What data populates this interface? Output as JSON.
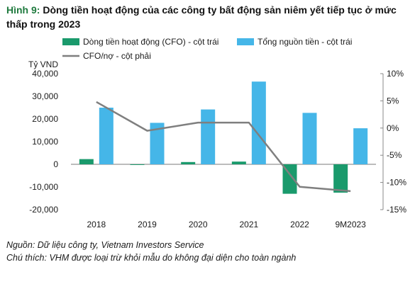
{
  "figure": {
    "label": "Hình 9:",
    "title": "Dòng tiền hoạt động của các công ty bất động sản niêm yết tiếp tục ở mức thấp trong 2023"
  },
  "chart_data": {
    "type": "bar",
    "categories": [
      "2018",
      "2019",
      "2020",
      "2021",
      "2022",
      "9M2023"
    ],
    "series": [
      {
        "name": "Dòng tiền hoạt động (CFO) - cột trái",
        "kind": "bar",
        "axis": "left",
        "color": "#1a9a6c",
        "values": [
          2300,
          -300,
          1000,
          1200,
          -13000,
          -12500
        ]
      },
      {
        "name": "Tổng nguồn tiền - cột trái",
        "kind": "bar",
        "axis": "left",
        "color": "#45b6e8",
        "values": [
          25000,
          18300,
          24200,
          36500,
          22700,
          15900
        ]
      },
      {
        "name": "CFO/nợ - cột phải",
        "kind": "line",
        "axis": "right",
        "color": "#7f7f7f",
        "values": [
          4.8,
          -0.5,
          1.0,
          1.0,
          -10.8,
          -11.6
        ]
      }
    ],
    "left_axis": {
      "unit_label": "Tỷ VND",
      "ylim": [
        -20000,
        40000
      ],
      "ticks": [
        40000,
        30000,
        20000,
        10000,
        0,
        -10000,
        -20000
      ],
      "tick_labels": [
        "40,000",
        "30,000",
        "20,000",
        "10,000",
        "0",
        "-10,000",
        "-20,000"
      ]
    },
    "right_axis": {
      "ylim": [
        -15,
        10
      ],
      "ticks": [
        10,
        5,
        0,
        -5,
        -10,
        -15
      ],
      "tick_labels": [
        "10%",
        "5%",
        "0%",
        "-5%",
        "-10%",
        "-15%"
      ]
    },
    "grid": false,
    "legend_position": "top"
  },
  "footer": {
    "source": "Nguồn: Dữ liệu công ty, Vietnam Investors Service",
    "note": "Chú thích: VHM được loại trừ khỏi mẫu do không đại diện cho toàn ngành"
  }
}
